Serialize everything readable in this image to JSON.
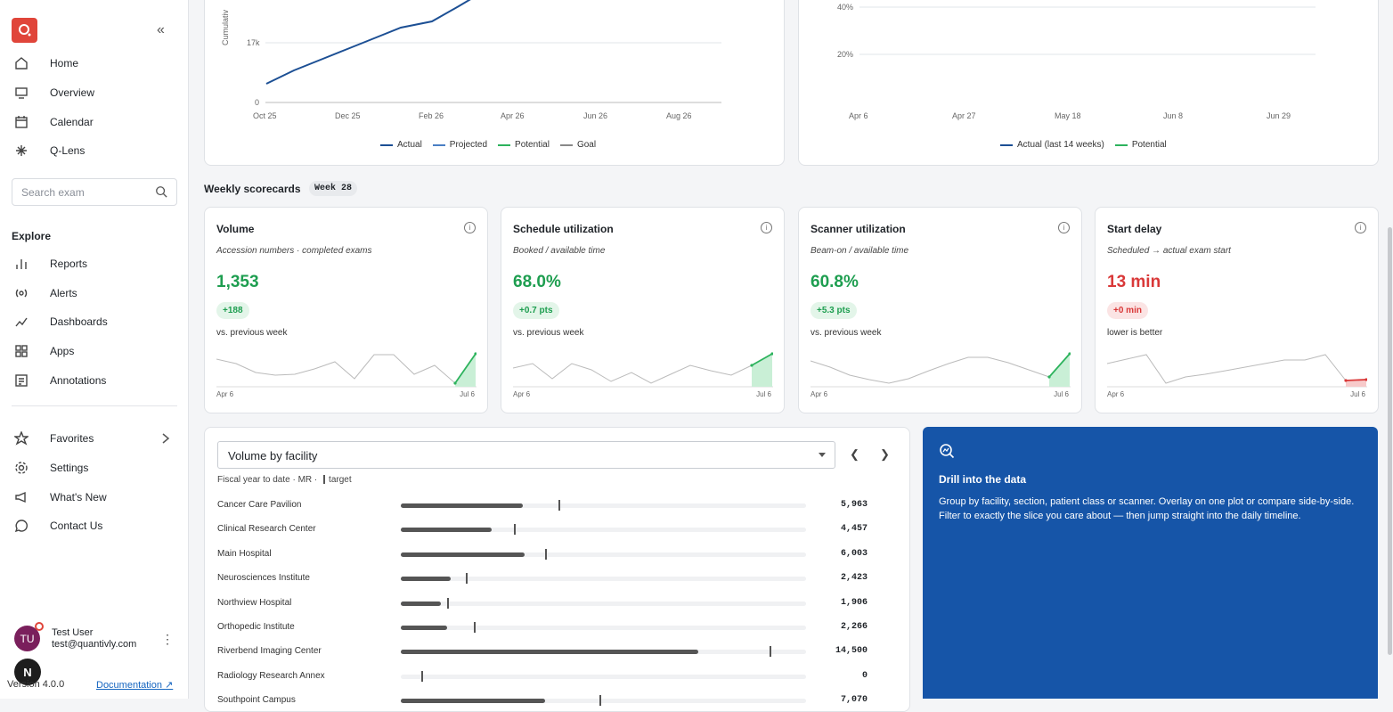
{
  "sidebar": {
    "nav": [
      {
        "label": "Home",
        "icon": "home-icon"
      },
      {
        "label": "Overview",
        "icon": "monitor-icon"
      },
      {
        "label": "Calendar",
        "icon": "calendar-icon"
      },
      {
        "label": "Q-Lens",
        "icon": "sparkle-icon"
      }
    ],
    "search_placeholder": "Search exam",
    "explore_label": "Explore",
    "explore": [
      {
        "label": "Reports"
      },
      {
        "label": "Alerts"
      },
      {
        "label": "Dashboards"
      },
      {
        "label": "Apps"
      },
      {
        "label": "Annotations"
      }
    ],
    "bottom": [
      {
        "label": "Favorites"
      },
      {
        "label": "Settings"
      },
      {
        "label": "What's New"
      },
      {
        "label": "Contact Us"
      }
    ],
    "user": {
      "initials": "TU",
      "name": "Test User",
      "email": "test@quantivly.com"
    },
    "version": "Version 4.0.0",
    "documentation": "Documentation"
  },
  "top_left_chart": {
    "ylabel": "Cumulativ",
    "yticks": [
      "17k",
      "0"
    ],
    "xticks": [
      "Oct 25",
      "Dec 25",
      "Feb 26",
      "Apr 26",
      "Jun 26",
      "Aug 26"
    ],
    "legend": [
      "Actual",
      "Projected",
      "Potential",
      "Goal"
    ]
  },
  "top_right_chart": {
    "yticks": [
      "40%",
      "20%"
    ],
    "xticks": [
      "Apr 6",
      "Apr 27",
      "May 18",
      "Jun 8",
      "Jun 29"
    ],
    "legend": [
      "Actual (last 14 weeks)",
      "Potential"
    ]
  },
  "weekly": {
    "title": "Weekly scorecards",
    "badge": "Week 28"
  },
  "scorecards": [
    {
      "title": "Volume",
      "subtitle": "Accession numbers · completed exams",
      "value": "1,353",
      "delta": "+188",
      "note": "vs. previous week",
      "start": "Apr 6",
      "end": "Jul 6"
    },
    {
      "title": "Schedule utilization",
      "subtitle": "Booked / available time",
      "value": "68.0%",
      "delta": "+0.7 pts",
      "note": "vs. previous week",
      "start": "Apr 6",
      "end": "Jul 6"
    },
    {
      "title": "Scanner utilization",
      "subtitle": "Beam-on / available time",
      "value": "60.8%",
      "delta": "+5.3 pts",
      "note": "vs. previous week",
      "start": "Apr 6",
      "end": "Jul 6"
    },
    {
      "title": "Start delay",
      "subtitle": "Scheduled → actual exam start",
      "value": "13 min",
      "delta": "+0 min",
      "note": "lower is better",
      "start": "Apr 6",
      "end": "Jul 6"
    }
  ],
  "colors": {
    "good": "#1e9e50",
    "bad": "#d93838",
    "navy": "#1c4f94",
    "green": "#2db35d",
    "drill": "#1655a8"
  },
  "facility": {
    "selector": "Volume by facility",
    "subtitle": "Fiscal year to date · MR ·",
    "target_label": "target",
    "rows": [
      {
        "name": "Cancer Care Pavilion",
        "value": "5,963",
        "fill": 0.3,
        "target": 0.39
      },
      {
        "name": "Clinical Research Center",
        "value": "4,457",
        "fill": 0.225,
        "target": 0.28
      },
      {
        "name": "Main Hospital",
        "value": "6,003",
        "fill": 0.305,
        "target": 0.355
      },
      {
        "name": "Neurosciences Institute",
        "value": "2,423",
        "fill": 0.123,
        "target": 0.16
      },
      {
        "name": "Northview Hospital",
        "value": "1,906",
        "fill": 0.098,
        "target": 0.115
      },
      {
        "name": "Orthopedic Institute",
        "value": "2,266",
        "fill": 0.115,
        "target": 0.18
      },
      {
        "name": "Riverbend Imaging Center",
        "value": "14,500",
        "fill": 0.733,
        "target": 0.91
      },
      {
        "name": "Radiology Research Annex",
        "value": "0",
        "fill": 0,
        "target": 0.05
      },
      {
        "name": "Southpoint Campus",
        "value": "7,070",
        "fill": 0.357,
        "target": 0.49
      }
    ]
  },
  "drill": {
    "title": "Drill into the data",
    "text": "Group by facility, section, patient class or scanner. Overlay on one plot or compare side-by-side. Filter to exactly the slice you care about — then jump straight into the daily timeline."
  }
}
